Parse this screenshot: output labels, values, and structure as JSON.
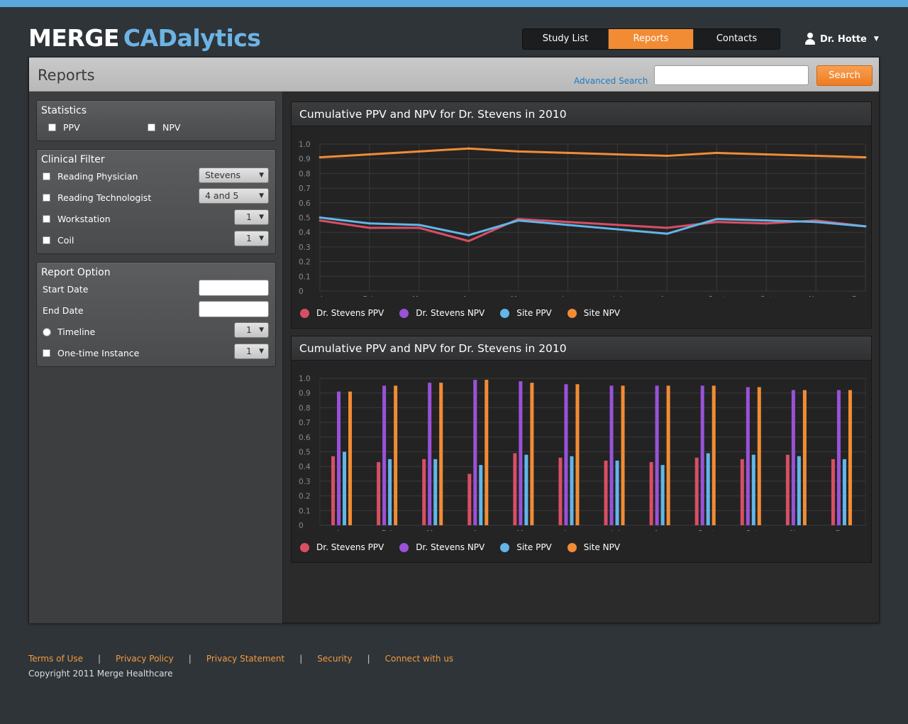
{
  "app": {
    "logo_merge": "MERGE",
    "logo_cad": "CADalytics"
  },
  "nav": {
    "tabs": [
      {
        "label": "Study List"
      },
      {
        "label": "Reports"
      },
      {
        "label": "Contacts"
      }
    ],
    "active": "Reports"
  },
  "user": {
    "name": "Dr. Hotte"
  },
  "header": {
    "title": "Reports",
    "advanced_search": "Advanced Search",
    "search_value": "",
    "search_button": "Search"
  },
  "statistics": {
    "title": "Statistics",
    "ppv": "PPV",
    "npv": "NPV"
  },
  "clinical_filter": {
    "title": "Clinical Filter",
    "reading_physician": "Reading Physician",
    "reading_physician_value": "Stevens",
    "reading_technologist": "Reading Technologist",
    "reading_technologist_value": "4 and 5",
    "workstation": "Workstation",
    "workstation_value": "1",
    "coil": "Coil",
    "coil_value": "1"
  },
  "report_option": {
    "title": "Report Option",
    "start_date": "Start Date",
    "end_date": "End Date",
    "timeline": "Timeline",
    "timeline_value": "1",
    "one_time": "One-time Instance",
    "one_time_value": "1"
  },
  "legend": [
    {
      "name": "Dr. Stevens PPV",
      "color": "#d84f63"
    },
    {
      "name": "Dr. Stevens NPV",
      "color": "#9a52d8"
    },
    {
      "name": "Site PPV",
      "color": "#62b6e8"
    },
    {
      "name": "Site NPV",
      "color": "#f28c34"
    }
  ],
  "chart_data": [
    {
      "type": "line",
      "title": "Cumulative PPV and NPV for Dr. Stevens in 2010",
      "categories": [
        "Jan",
        "Feb",
        "Mar",
        "Apr",
        "May",
        "Jun",
        "Jul",
        "Aug",
        "Sept",
        "Oct",
        "Nov",
        "Dec"
      ],
      "yticks": [
        "0",
        "0.1",
        "0.2",
        "0.3",
        "0.4",
        "0.5",
        "0.6",
        "0.7",
        "0.8",
        "0.9",
        "1.0"
      ],
      "ylim": [
        0,
        1
      ],
      "grid": true,
      "legend_position": "bottom",
      "series": [
        {
          "name": "Dr. Stevens PPV",
          "values": [
            0.48,
            0.43,
            0.43,
            0.34,
            0.49,
            0.47,
            0.45,
            0.43,
            0.47,
            0.46,
            0.48,
            0.44
          ]
        },
        {
          "name": "Site PPV",
          "values": [
            0.5,
            0.46,
            0.45,
            0.38,
            0.48,
            0.45,
            0.42,
            0.39,
            0.49,
            0.48,
            0.47,
            0.44
          ]
        },
        {
          "name": "Site NPV",
          "values": [
            0.91,
            0.93,
            0.95,
            0.97,
            0.95,
            0.94,
            0.93,
            0.92,
            0.94,
            0.93,
            0.92,
            0.91
          ]
        }
      ]
    },
    {
      "type": "bar",
      "title": "Cumulative PPV and NPV for Dr. Stevens in 2010",
      "categories": [
        "Jan",
        "Feb",
        "Mar",
        "Apr",
        "May",
        "Jun",
        "Jul",
        "Aug",
        "Sept",
        "Oct",
        "Nov",
        "Dec"
      ],
      "yticks": [
        "0",
        "0.1",
        "0.2",
        "0.3",
        "0.4",
        "0.5",
        "0.6",
        "0.7",
        "0.8",
        "0.9",
        "1.0"
      ],
      "ylim": [
        0,
        1
      ],
      "grid": true,
      "legend_position": "bottom",
      "series": [
        {
          "name": "Dr. Stevens PPV",
          "values": [
            0.47,
            0.43,
            0.45,
            0.35,
            0.49,
            0.46,
            0.44,
            0.43,
            0.46,
            0.45,
            0.48,
            0.45
          ]
        },
        {
          "name": "Dr. Stevens NPV",
          "values": [
            0.91,
            0.95,
            0.97,
            0.99,
            0.98,
            0.96,
            0.95,
            0.95,
            0.95,
            0.94,
            0.92,
            0.92
          ]
        },
        {
          "name": "Site PPV",
          "values": [
            0.5,
            0.45,
            0.45,
            0.41,
            0.48,
            0.47,
            0.44,
            0.41,
            0.49,
            0.48,
            0.47,
            0.45
          ]
        },
        {
          "name": "Site NPV",
          "values": [
            0.91,
            0.95,
            0.97,
            0.99,
            0.97,
            0.96,
            0.95,
            0.95,
            0.95,
            0.94,
            0.92,
            0.92
          ]
        }
      ]
    }
  ],
  "footer": {
    "links": [
      "Terms of Use",
      "Privacy Policy",
      "Privacy Statement",
      "Security",
      "Connect with us"
    ],
    "copyright": "Copyright 2011 Merge Healthcare"
  }
}
